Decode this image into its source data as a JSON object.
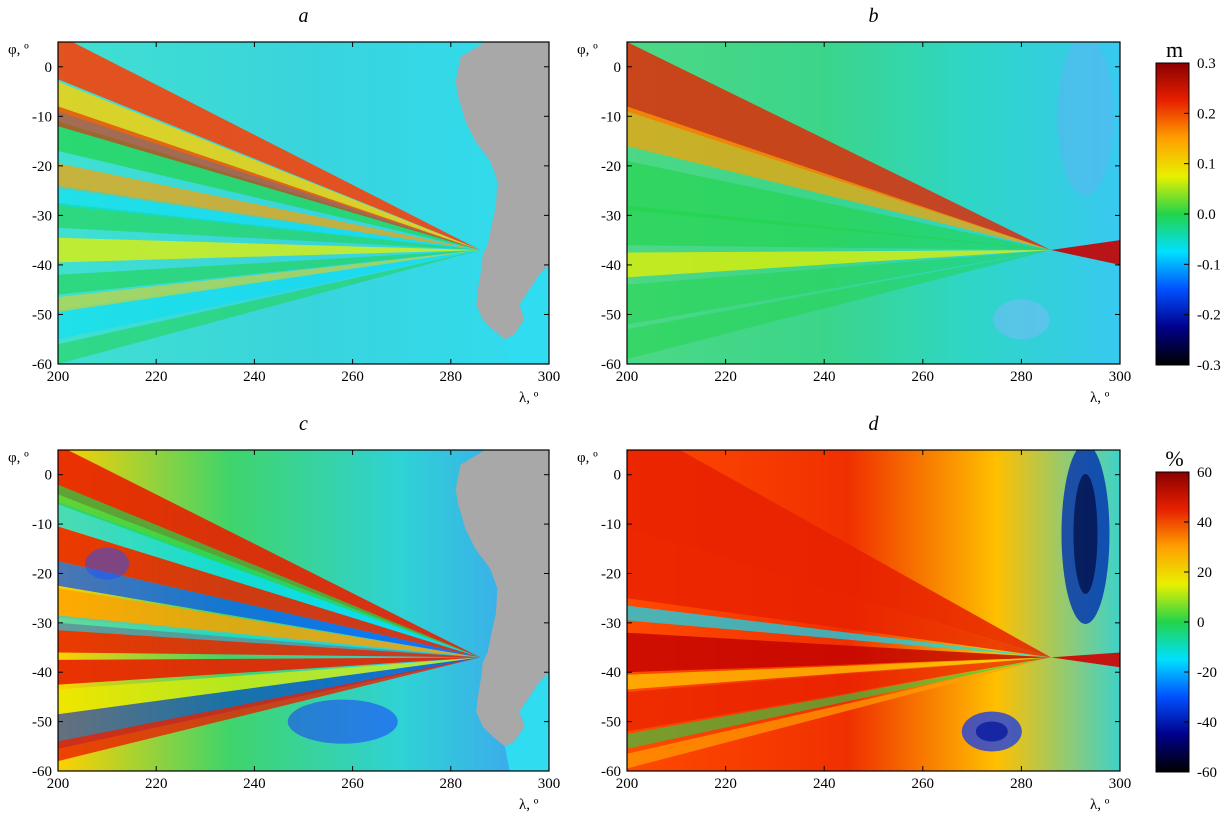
{
  "figure": {
    "panels": [
      {
        "id": "a",
        "label": "a",
        "xlabel": "λ, º",
        "ylabel": "φ, º",
        "colorbar": null
      },
      {
        "id": "b",
        "label": "b",
        "xlabel": "λ, º",
        "ylabel": "φ, º",
        "colorbar": "m"
      },
      {
        "id": "c",
        "label": "c",
        "xlabel": "λ, º",
        "ylabel": "φ, º",
        "colorbar": null
      },
      {
        "id": "d",
        "label": "d",
        "xlabel": "λ, º",
        "ylabel": "φ, º",
        "colorbar": "pct"
      }
    ],
    "colorbars": {
      "m": {
        "title": "m",
        "ticks": [
          "0.3",
          "0.2",
          "0.1",
          "0.0",
          "-0.1",
          "-0.2",
          "-0.3"
        ],
        "range": [
          -0.3,
          0.3
        ]
      },
      "pct": {
        "title": "%",
        "ticks": [
          "60",
          "40",
          "20",
          "0",
          "-20",
          "-40",
          "-60"
        ],
        "range": [
          -60,
          60
        ]
      }
    },
    "colormap": [
      "#000000",
      "#00008b",
      "#0050ff",
      "#00e0ff",
      "#22d44a",
      "#e8f000",
      "#ffa000",
      "#e82000",
      "#8b0000"
    ],
    "land_color": "#a8a8a8"
  },
  "chart_data": [
    {
      "type": "heatmap",
      "title": "a",
      "xlabel": "λ, º",
      "ylabel": "φ, º",
      "xlim": [
        200,
        300
      ],
      "ylim": [
        -60,
        5
      ],
      "xticks": [
        200,
        220,
        240,
        260,
        280,
        300
      ],
      "yticks": [
        0,
        -10,
        -20,
        -30,
        -40,
        -50,
        -60
      ],
      "colorbar_range": [
        -0.3,
        0.3
      ],
      "land": true
    },
    {
      "type": "heatmap",
      "title": "b",
      "xlabel": "λ, º",
      "ylabel": "φ, º",
      "xlim": [
        200,
        300
      ],
      "ylim": [
        -60,
        5
      ],
      "xticks": [
        200,
        220,
        240,
        260,
        280,
        300
      ],
      "yticks": [
        0,
        -10,
        -20,
        -30,
        -40,
        -50,
        -60
      ],
      "colorbar_title": "m",
      "colorbar_range": [
        -0.3,
        0.3
      ],
      "land": false
    },
    {
      "type": "heatmap",
      "title": "c",
      "xlabel": "λ, º",
      "ylabel": "φ, º",
      "xlim": [
        200,
        300
      ],
      "ylim": [
        -60,
        5
      ],
      "xticks": [
        200,
        220,
        240,
        260,
        280,
        300
      ],
      "yticks": [
        0,
        -10,
        -20,
        -30,
        -40,
        -50,
        -60
      ],
      "colorbar_range": [
        -60,
        60
      ],
      "land": true
    },
    {
      "type": "heatmap",
      "title": "d",
      "xlabel": "λ, º",
      "ylabel": "φ, º",
      "xlim": [
        200,
        300
      ],
      "ylim": [
        -60,
        5
      ],
      "xticks": [
        200,
        220,
        240,
        260,
        280,
        300
      ],
      "yticks": [
        0,
        -10,
        -20,
        -30,
        -40,
        -50,
        -60
      ],
      "colorbar_title": "%",
      "colorbar_range": [
        -60,
        60
      ],
      "land": false
    }
  ]
}
